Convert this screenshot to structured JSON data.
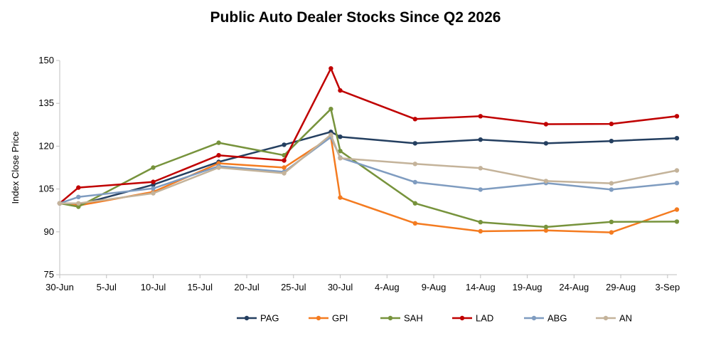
{
  "chart_data": {
    "type": "line",
    "title": "Public Auto Dealer Stocks Since Q2 2026",
    "xlabel": "",
    "ylabel": "Index Close Price",
    "ylim": [
      75,
      150
    ],
    "yticks": [
      75,
      90,
      105,
      120,
      135,
      150
    ],
    "xlim": [
      "2026-06-30",
      "2026-09-04"
    ],
    "xticks": [
      {
        "date": "2026-06-30",
        "label": "30-Jun"
      },
      {
        "date": "2026-07-05",
        "label": "5-Jul"
      },
      {
        "date": "2026-07-10",
        "label": "10-Jul"
      },
      {
        "date": "2026-07-15",
        "label": "15-Jul"
      },
      {
        "date": "2026-07-20",
        "label": "20-Jul"
      },
      {
        "date": "2026-07-25",
        "label": "25-Jul"
      },
      {
        "date": "2026-07-30",
        "label": "30-Jul"
      },
      {
        "date": "2026-08-04",
        "label": "4-Aug"
      },
      {
        "date": "2026-08-09",
        "label": "9-Aug"
      },
      {
        "date": "2026-08-14",
        "label": "14-Aug"
      },
      {
        "date": "2026-08-19",
        "label": "19-Aug"
      },
      {
        "date": "2026-08-24",
        "label": "24-Aug"
      },
      {
        "date": "2026-08-29",
        "label": "29-Aug"
      },
      {
        "date": "2026-09-03",
        "label": "3-Sep"
      }
    ],
    "grid": false,
    "legend_position": "bottom",
    "series": [
      {
        "name": "PAG",
        "color": "#243f60",
        "points": [
          [
            "2026-06-30",
            100
          ],
          [
            "2026-07-02",
            99.5
          ],
          [
            "2026-07-10",
            106.5
          ],
          [
            "2026-07-17",
            114.5
          ],
          [
            "2026-07-24",
            120.5
          ],
          [
            "2026-07-29",
            125
          ],
          [
            "2026-07-30",
            123.3
          ],
          [
            "2026-08-07",
            121
          ],
          [
            "2026-08-14",
            122.3
          ],
          [
            "2026-08-21",
            121
          ],
          [
            "2026-08-28",
            121.8
          ],
          [
            "2026-09-04",
            122.8
          ]
        ]
      },
      {
        "name": "GPI",
        "color": "#f47b20",
        "points": [
          [
            "2026-06-30",
            100
          ],
          [
            "2026-07-02",
            99.2
          ],
          [
            "2026-07-10",
            104
          ],
          [
            "2026-07-17",
            114
          ],
          [
            "2026-07-24",
            112.5
          ],
          [
            "2026-07-29",
            123.2
          ],
          [
            "2026-07-30",
            102
          ],
          [
            "2026-08-07",
            93
          ],
          [
            "2026-08-14",
            90.2
          ],
          [
            "2026-08-21",
            90.5
          ],
          [
            "2026-08-28",
            89.8
          ],
          [
            "2026-09-04",
            97.8
          ]
        ]
      },
      {
        "name": "SAH",
        "color": "#77933c",
        "points": [
          [
            "2026-06-30",
            100
          ],
          [
            "2026-07-02",
            98.8
          ],
          [
            "2026-07-10",
            112.5
          ],
          [
            "2026-07-17",
            121.2
          ],
          [
            "2026-07-24",
            116.8
          ],
          [
            "2026-07-29",
            133
          ],
          [
            "2026-07-30",
            118.3
          ],
          [
            "2026-08-07",
            100
          ],
          [
            "2026-08-14",
            93.4
          ],
          [
            "2026-08-21",
            91.7
          ],
          [
            "2026-08-28",
            93.5
          ],
          [
            "2026-09-04",
            93.6
          ]
        ]
      },
      {
        "name": "LAD",
        "color": "#c00000",
        "points": [
          [
            "2026-06-30",
            100
          ],
          [
            "2026-07-02",
            105.5
          ],
          [
            "2026-07-10",
            107.5
          ],
          [
            "2026-07-17",
            116.8
          ],
          [
            "2026-07-24",
            115
          ],
          [
            "2026-07-29",
            147.2
          ],
          [
            "2026-07-30",
            139.5
          ],
          [
            "2026-08-07",
            129.5
          ],
          [
            "2026-08-14",
            130.5
          ],
          [
            "2026-08-21",
            127.7
          ],
          [
            "2026-08-28",
            127.8
          ],
          [
            "2026-09-04",
            130.5
          ]
        ]
      },
      {
        "name": "ABG",
        "color": "#7f9cc0",
        "points": [
          [
            "2026-06-30",
            100
          ],
          [
            "2026-07-02",
            102.2
          ],
          [
            "2026-07-10",
            105.2
          ],
          [
            "2026-07-17",
            113
          ],
          [
            "2026-07-24",
            111
          ],
          [
            "2026-07-29",
            123.2
          ],
          [
            "2026-07-30",
            116
          ],
          [
            "2026-08-07",
            107.4
          ],
          [
            "2026-08-14",
            104.8
          ],
          [
            "2026-08-21",
            107.1
          ],
          [
            "2026-08-28",
            104.8
          ],
          [
            "2026-09-04",
            107.1
          ]
        ]
      },
      {
        "name": "AN",
        "color": "#c4b39a",
        "points": [
          [
            "2026-06-30",
            100
          ],
          [
            "2026-07-02",
            100
          ],
          [
            "2026-07-10",
            103.5
          ],
          [
            "2026-07-17",
            112.5
          ],
          [
            "2026-07-24",
            110.5
          ],
          [
            "2026-07-29",
            124
          ],
          [
            "2026-07-30",
            115.8
          ],
          [
            "2026-08-07",
            113.8
          ],
          [
            "2026-08-14",
            112.3
          ],
          [
            "2026-08-21",
            107.8
          ],
          [
            "2026-08-28",
            107
          ],
          [
            "2026-09-04",
            111.5
          ]
        ]
      }
    ]
  }
}
